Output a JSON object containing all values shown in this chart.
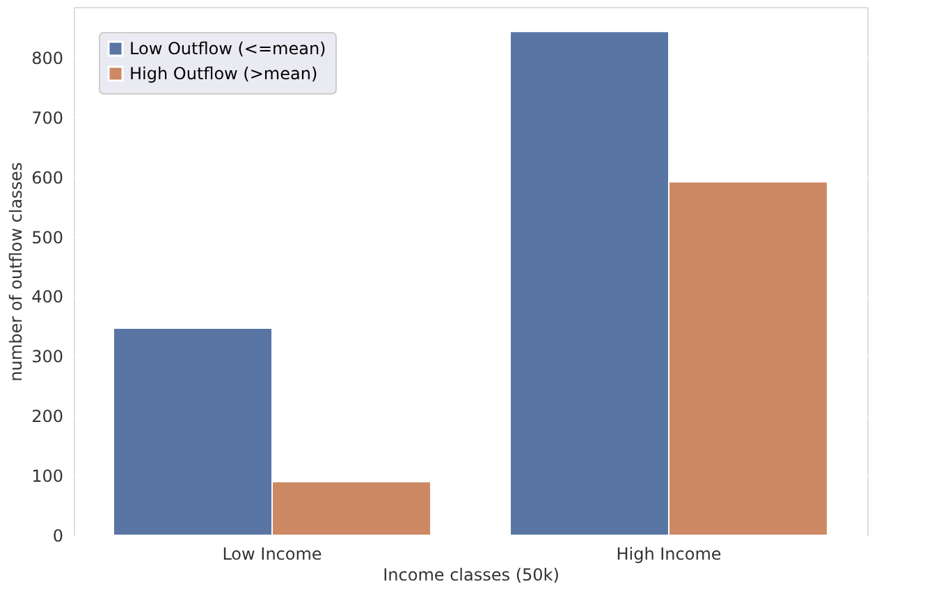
{
  "chart_data": {
    "type": "bar",
    "xlabel": "Income classes (50k)",
    "ylabel": "number of outflow classes",
    "categories": [
      "Low Income",
      "High Income"
    ],
    "series": [
      {
        "name": "Low Outflow (<=mean)",
        "color": "#5975a4",
        "values": [
          347,
          844
        ]
      },
      {
        "name": "High Outflow (>mean)",
        "color": "#cc8963",
        "values": [
          90,
          592
        ]
      }
    ],
    "ylim": [
      0,
      885
    ],
    "yticks": [
      0,
      100,
      200,
      300,
      400,
      500,
      600,
      700,
      800
    ],
    "grid": "y",
    "legend": "top left"
  }
}
